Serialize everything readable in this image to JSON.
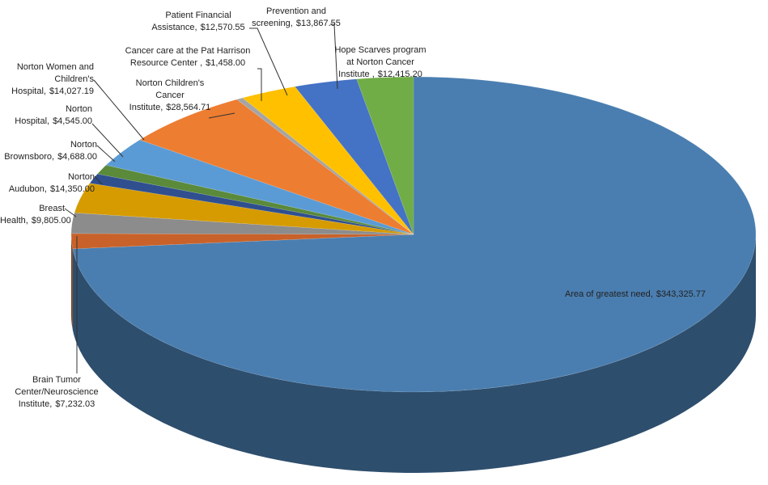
{
  "chart_data": {
    "type": "pie3d",
    "categories": [
      "Area of greatest need,",
      "Brain Tumor Center/Neuroscience Institute,",
      "Breast Health,",
      "Norton Audubon,",
      "Norton Brownsboro,",
      "Norton Hospital,",
      "Norton Women and Children's Hospital,",
      "Norton Children's Cancer Institute,",
      "Cancer care at the Pat Harrison Resource Center ,",
      "Patient Financial Assistance,",
      "Prevention and screening,",
      "Hope Scarves program at Norton Cancer Institute ,"
    ],
    "values": [
      343325.77,
      7232.03,
      9805.0,
      14350.0,
      4688.0,
      4545.0,
      14027.19,
      28564.71,
      1458.0,
      12570.55,
      13867.55,
      12415.2
    ],
    "value_labels": [
      "$343,325.77",
      "$7,232.03",
      "$9,805.00",
      "$14,350.00",
      "$4,688.00",
      "$4,545.00",
      "$14,027.19",
      "$28,564.71",
      "$1,458.00",
      "$12,570.55",
      "$13,867.55",
      "$12,415.20"
    ],
    "colors": [
      "#4a7eb0",
      "#c8622a",
      "#8c8c8c",
      "#d59b00",
      "#2f4f8f",
      "#5a8a3a",
      "#5b9bd5",
      "#ed7d31",
      "#a5a5a5",
      "#ffc000",
      "#4472c4",
      "#70ad47"
    ]
  }
}
